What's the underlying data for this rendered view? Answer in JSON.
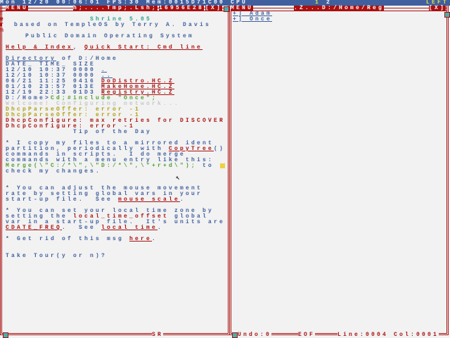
{
  "colors": {
    "blue": "#3f5f9f",
    "red": "#aa1010",
    "yellow": "#b0a010",
    "green": "#4f9f2f",
    "cyan": "#2fa08f",
    "grey": "#c8c8c8",
    "bg": "#f2f2f2"
  },
  "topbar": {
    "status": "Mon 12/20 00:06:01 FPS:30 Mem:0015D71C00 CPU ",
    "cpu1": "1",
    "cpu2": "2",
    "right": "LEFT"
  },
  "left_window": {
    "menu": "MENU",
    "title": "h;....Tmp;.Lsh;",
    "task": "16956E28",
    "close": "[X]",
    "side_label": [
      "T",
      "e",
      "r",
      "m"
    ],
    "footer": "SR",
    "lines": [
      {
        "row": 3,
        "col": 16,
        "segs": [
          {
            "t": "Shrine 5.05",
            "c": "cyan"
          }
        ]
      },
      {
        "row": 4,
        "col": 2.5,
        "segs": [
          {
            "t": "based on TempleOS by Terry A. Davis",
            "c": "blue"
          }
        ]
      },
      {
        "row": 6,
        "col": 4.5,
        "segs": [
          {
            "t": "Public Domain Operating System",
            "c": "blue"
          }
        ]
      },
      {
        "row": 8,
        "col": 1,
        "segs": [
          {
            "t": "Help & Index",
            "c": "red",
            "l": 1
          },
          {
            "t": ", ",
            "c": "blue"
          },
          {
            "t": "Quick Start: Cmd line",
            "c": "red",
            "l": 1
          }
        ]
      },
      {
        "row": 10,
        "col": 1,
        "segs": [
          {
            "t": "Directory",
            "c": "blue",
            "l": 1
          },
          {
            "t": " of D:/Home",
            "c": "blue"
          }
        ]
      },
      {
        "row": 11,
        "col": 1,
        "segs": [
          {
            "t": "DATE_ TIME_ SIZE",
            "c": "blue"
          }
        ]
      },
      {
        "row": 12,
        "col": 1,
        "segs": [
          {
            "t": "12/10 10:37 0000 ",
            "c": "blue"
          },
          {
            "t": ".",
            "c": "blue",
            "l": 1
          }
        ]
      },
      {
        "row": 13,
        "col": 1,
        "segs": [
          {
            "t": "12/10 10:37 0000 ",
            "c": "blue"
          },
          {
            "t": "..",
            "c": "blue",
            "l": 1
          }
        ]
      },
      {
        "row": 14,
        "col": 1,
        "segs": [
          {
            "t": "06/21 11:25 0416 ",
            "c": "blue"
          },
          {
            "t": "DoDistro.HC.Z",
            "c": "red",
            "l": 1
          }
        ]
      },
      {
        "row": 15,
        "col": 1,
        "segs": [
          {
            "t": "01/10 23:57 013E ",
            "c": "blue"
          },
          {
            "t": "MakeHome.HC.Z",
            "c": "red",
            "l": 1
          }
        ]
      },
      {
        "row": 16,
        "col": 1,
        "segs": [
          {
            "t": "12/19 22:33 01D3 ",
            "c": "blue"
          },
          {
            "t": "Registry.HC.Z",
            "c": "red",
            "l": 1
          }
        ]
      },
      {
        "row": 17,
        "col": 1,
        "segs": [
          {
            "t": "D:/Home>",
            "c": "blue"
          },
          {
            "t": "Cd;#include \"Once\";",
            "c": "green"
          }
        ]
      },
      {
        "row": 18,
        "col": 1,
        "segs": [
          {
            "t": "Welcome! Configuring network...",
            "c": "grey"
          }
        ]
      },
      {
        "row": 19,
        "col": 1,
        "segs": [
          {
            "t": "DhcpParseOffer: error -1",
            "c": "yellow"
          }
        ]
      },
      {
        "row": 20,
        "col": 1,
        "segs": [
          {
            "t": "DhcpParseOffer: error -1",
            "c": "yellow"
          }
        ]
      },
      {
        "row": 21,
        "col": 1,
        "segs": [
          {
            "t": "DhcpConfigure: max retries for DISCOVER",
            "c": "red"
          }
        ]
      },
      {
        "row": 22,
        "col": 1,
        "segs": [
          {
            "t": "DhcpConfigure: error -1",
            "c": "red"
          }
        ]
      },
      {
        "row": 23,
        "col": 13,
        "segs": [
          {
            "t": "Tip of the Day",
            "c": "blue"
          }
        ]
      },
      {
        "row": 25,
        "col": 1,
        "segs": [
          {
            "t": "* I copy my files to a mirrored ident",
            "c": "blue"
          }
        ]
      },
      {
        "row": 26,
        "col": 1,
        "segs": [
          {
            "t": "partition, periodically with ",
            "c": "blue"
          },
          {
            "t": "CopyTree",
            "c": "red",
            "l": 1
          },
          {
            "t": "()",
            "c": "blue"
          }
        ]
      },
      {
        "row": 27,
        "col": 1,
        "segs": [
          {
            "t": "commands in scripts.  I do merge",
            "c": "blue"
          }
        ]
      },
      {
        "row": 28,
        "col": 1,
        "segs": [
          {
            "t": "commands with a menu entry like this:",
            "c": "blue"
          }
        ]
      },
      {
        "row": 29,
        "col": 1,
        "segs": [
          {
            "t": "Merge(\\\"C:/*\\\",\\\"D:/*\\\",\\\"+r+d\\\");",
            "c": "green"
          },
          {
            "t": " to ",
            "c": "blue"
          }
        ]
      },
      {
        "row": 30,
        "col": 1,
        "segs": [
          {
            "t": "check my changes.",
            "c": "blue"
          }
        ]
      },
      {
        "row": 33,
        "col": 1,
        "segs": [
          {
            "t": "* You can adjust the mouse movement",
            "c": "blue"
          }
        ]
      },
      {
        "row": 34,
        "col": 1,
        "segs": [
          {
            "t": "rate by setting global vars in your",
            "c": "blue"
          }
        ]
      },
      {
        "row": 35,
        "col": 1,
        "segs": [
          {
            "t": "start-up file.  See ",
            "c": "blue"
          },
          {
            "t": "mouse scale",
            "c": "red",
            "l": 1
          },
          {
            "t": ".",
            "c": "blue"
          }
        ]
      },
      {
        "row": 37,
        "col": 1,
        "segs": [
          {
            "t": "* You can set your local time zone by",
            "c": "blue"
          }
        ]
      },
      {
        "row": 38,
        "col": 1,
        "segs": [
          {
            "t": "setting the ",
            "c": "blue"
          },
          {
            "t": "local_time_offset",
            "c": "red"
          },
          {
            "t": " global",
            "c": "blue"
          }
        ]
      },
      {
        "row": 39,
        "col": 1,
        "segs": [
          {
            "t": "var in a start-up file.  It's units are",
            "c": "blue"
          }
        ]
      },
      {
        "row": 40,
        "col": 1,
        "segs": [
          {
            "t": "CDATE_FREQ",
            "c": "red",
            "l": 1
          },
          {
            "t": ".  See ",
            "c": "blue"
          },
          {
            "t": "local time",
            "c": "red",
            "l": 1
          },
          {
            "t": ".",
            "c": "blue"
          }
        ]
      },
      {
        "row": 42,
        "col": 1,
        "segs": [
          {
            "t": "* Get rid of this msg ",
            "c": "blue"
          },
          {
            "t": "here",
            "c": "red",
            "l": 1
          },
          {
            "t": ".",
            "c": "blue"
          }
        ]
      },
      {
        "row": 45,
        "col": 1,
        "segs": [
          {
            "t": "Take Tour(y or n)?",
            "c": "blue"
          }
        ]
      }
    ]
  },
  "right_window": {
    "menu": "MENU",
    "title": ".Z...D:/Home/Reg",
    "close": "[X]",
    "items": [
      {
        "label": "+] Adam"
      },
      {
        "label": "+] Once"
      }
    ],
    "footer": {
      "undo": "Undo:0",
      "eof": "EOF",
      "line": "Line:0004 Col:0001"
    }
  }
}
